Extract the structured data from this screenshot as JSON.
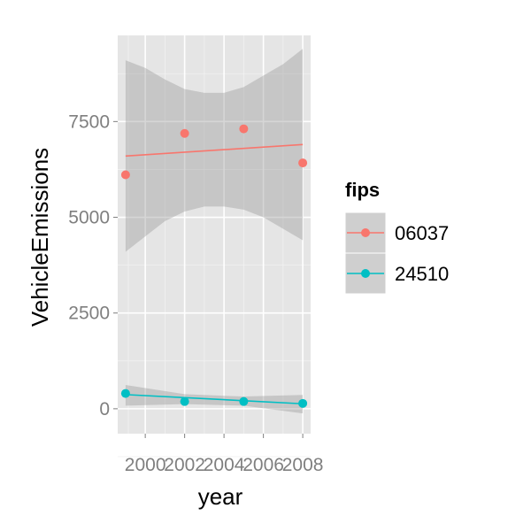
{
  "chart_data": {
    "type": "scatter",
    "xlabel": "year",
    "ylabel": "VehicleEmissions",
    "xlim": [
      1998.6,
      2008.4
    ],
    "ylim": [
      -650,
      9750
    ],
    "x_ticks": [
      2000,
      2002,
      2004,
      2006,
      2008
    ],
    "y_ticks": [
      0,
      2500,
      5000,
      7500
    ],
    "grid": true,
    "legend": {
      "title": "fips",
      "position": "right"
    },
    "series": [
      {
        "name": "06037",
        "color": "#F8766D",
        "x": [
          1999,
          2002,
          2005,
          2008
        ],
        "y": [
          6110,
          7190,
          7310,
          6420
        ],
        "fit": {
          "x": [
            1999,
            2008
          ],
          "y": [
            6600,
            6900
          ]
        },
        "band": {
          "x": [
            1999,
            2000,
            2001,
            2002,
            2003,
            2004,
            2005,
            2006,
            2007,
            2008
          ],
          "lower": [
            4100,
            4500,
            4900,
            5150,
            5280,
            5280,
            5200,
            5000,
            4700,
            4400
          ],
          "upper": [
            9100,
            8900,
            8600,
            8350,
            8250,
            8250,
            8400,
            8700,
            9000,
            9400
          ]
        }
      },
      {
        "name": "24510",
        "color": "#00BFC4",
        "x": [
          1999,
          2002,
          2005,
          2008
        ],
        "y": [
          400,
          190,
          190,
          140
        ],
        "fit": {
          "x": [
            1999,
            2008
          ],
          "y": [
            370,
            130
          ]
        },
        "band": {
          "x": [
            1999,
            2002,
            2005,
            2008
          ],
          "lower": [
            80,
            120,
            80,
            -120
          ],
          "upper": [
            620,
            380,
            320,
            360
          ]
        }
      }
    ]
  }
}
